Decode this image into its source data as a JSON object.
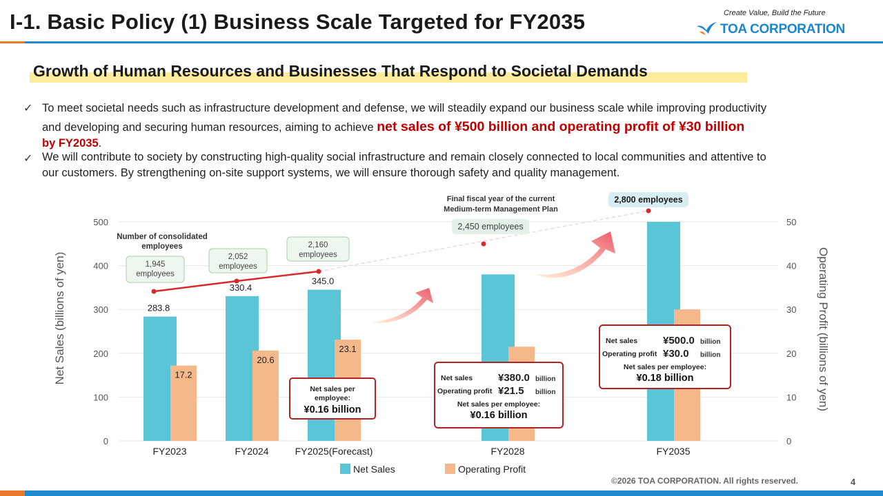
{
  "header": {
    "title": "I-1. Basic Policy (1) Business Scale Targeted for FY2035",
    "tagline": "Create Value, Build the Future",
    "logo_text": "TOA CORPORATION",
    "logo_icon": "bird-logo-icon"
  },
  "subtitle": "Growth of Human Resources and Businesses That Respond to Societal Demands",
  "bullets": {
    "b1_line1": "To meet societal needs such as infrastructure development and defense, we will steadily expand our business scale while improving productivity",
    "b1_line2_pre": "and developing and securing human resources, aiming to achieve ",
    "b1_highlight": "net sales of ¥500 billion and operating profit of ¥30 billion",
    "b1_line3_red": "by FY2035",
    "b1_line3_post": ".",
    "b2_line1": "We will contribute to society by constructing high-quality social infrastructure and remain closely connected to local communities and attentive to",
    "b2_line2": "our customers. By strengthening on-site support systems, we will ensure thorough safety and quality management."
  },
  "chart_data": {
    "type": "bar",
    "categories": [
      "FY2023",
      "FY2024",
      "FY2025(Forecast)",
      "FY2028",
      "FY2035"
    ],
    "series": [
      {
        "name": "Net Sales",
        "axis": "left",
        "color": "#5bc5d8",
        "values": [
          283.8,
          330.4,
          345.0,
          380.0,
          500.0
        ],
        "labels": [
          "283.8",
          "330.4",
          "345.0",
          "",
          ""
        ]
      },
      {
        "name": "Operating Profit",
        "axis": "right",
        "color": "#f5b88a",
        "values": [
          17.2,
          20.6,
          23.1,
          21.5,
          30.0
        ],
        "labels": [
          "17.2",
          "20.6",
          "23.1",
          "",
          ""
        ]
      }
    ],
    "employees": {
      "title": "Number of consolidated employees",
      "values": [
        1945,
        2052,
        2160,
        2450,
        2800
      ],
      "labels": [
        "1,945 employees",
        "2,052 employees",
        "2,160 employees",
        "2,450 employees",
        "2,800 employees"
      ],
      "line_color": "#d62b2b"
    },
    "ylabel_left": "Net Sales (billions of yen)",
    "ylabel_right": "Operating Profit (billions of yen)",
    "ylim_left": [
      0,
      500
    ],
    "ylim_right": [
      0,
      50
    ],
    "yticks_left": [
      0,
      100,
      200,
      300,
      400,
      500
    ],
    "yticks_right": [
      0,
      10,
      20,
      30,
      40,
      50
    ],
    "legend": [
      "Net Sales",
      "Operating Profit"
    ],
    "annotations": {
      "final_year_note": "Final fiscal year of the current Medium-term Management Plan",
      "box_fy2025": {
        "label": "Net sales per employee:",
        "value": "¥0.16 billion"
      },
      "box_fy2028": {
        "net_sales_label": "Net sales",
        "net_sales_value": "¥380.0",
        "op_label": "Operating profit",
        "op_value": "¥21.5",
        "unit": "billion",
        "per_emp_label": "Net sales per employee:",
        "per_emp_value": "¥0.16 billion"
      },
      "box_fy2035": {
        "net_sales_label": "Net sales",
        "net_sales_value": "¥500.0",
        "op_label": "Operating profit",
        "op_value": "¥30.0",
        "unit": "billion",
        "per_emp_label": "Net sales per employee:",
        "per_emp_value": "¥0.18 billion"
      }
    }
  },
  "footer": {
    "copyright": "©2026 TOA CORPORATION. All rights reserved.",
    "page_number": "4"
  }
}
